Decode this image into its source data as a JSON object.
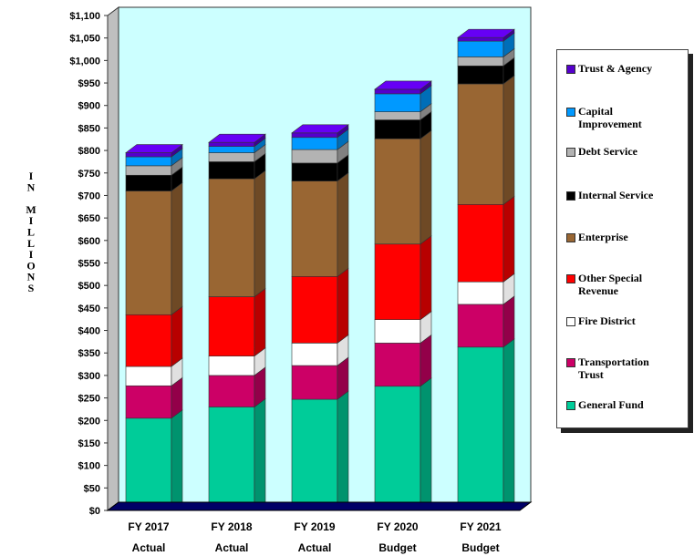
{
  "chart_data": {
    "type": "bar",
    "stacked": true,
    "categories": [
      {
        "line1": "FY 2017",
        "line2": "Actual"
      },
      {
        "line1": "FY 2018",
        "line2": "Actual"
      },
      {
        "line1": "FY 2019",
        "line2": "Actual"
      },
      {
        "line1": "FY 2020",
        "line2": "Budget"
      },
      {
        "line1": "FY 2021",
        "line2": "Budget"
      }
    ],
    "ylabel_letters": [
      "I",
      "N",
      "",
      "M",
      "I",
      "L",
      "L",
      "I",
      "O",
      "N",
      "S"
    ],
    "yticks": [
      "$0",
      "$50",
      "$100",
      "$150",
      "$200",
      "$250",
      "$300",
      "$350",
      "$400",
      "$450",
      "$500",
      "$550",
      "$600",
      "$650",
      "$700",
      "$750",
      "$800",
      "$850",
      "$900",
      "$950",
      "$1,000",
      "$1,050",
      "$1,100"
    ],
    "ylim": [
      0,
      1100
    ],
    "grid": false,
    "legend_position": "right",
    "series": [
      {
        "name": "General Fund",
        "color": "#00cc99",
        "values": [
          205,
          230,
          247,
          276,
          363
        ]
      },
      {
        "name": "Transportation Trust",
        "color": "#cc0066",
        "values": [
          72,
          70,
          75,
          96,
          95
        ]
      },
      {
        "name": "Fire District",
        "color": "#ffffff",
        "values": [
          43,
          43,
          50,
          52,
          50
        ]
      },
      {
        "name": "Other Special Revenue",
        "color": "#ff0000",
        "values": [
          115,
          132,
          148,
          168,
          172
        ]
      },
      {
        "name": "Enterprise",
        "color": "#996633",
        "values": [
          275,
          262,
          212,
          234,
          268
        ]
      },
      {
        "name": "Internal Service",
        "color": "#000000",
        "values": [
          35,
          38,
          40,
          42,
          40
        ]
      },
      {
        "name": "Debt Service",
        "color": "#b3b3b3",
        "values": [
          21,
          20,
          30,
          18,
          20
        ]
      },
      {
        "name": "Capital Improvement",
        "color": "#0099ff",
        "values": [
          20,
          14,
          27,
          40,
          35
        ]
      },
      {
        "name": "Trust & Agency",
        "color": "#5500cc",
        "values": [
          9,
          9,
          10,
          10,
          8
        ]
      }
    ],
    "legend_order": [
      "Trust & Agency",
      "Capital Improvement",
      "Debt Service",
      "Internal Service",
      "Enterprise",
      "Other Special Revenue",
      "Fire District",
      "Transportation Trust",
      "General Fund"
    ],
    "legend_display": [
      {
        "series": "Trust & Agency",
        "lines": [
          "Trust & Agency"
        ]
      },
      {
        "series": "Capital Improvement",
        "lines": [
          "Capital",
          "Improvement"
        ]
      },
      {
        "series": "Debt Service",
        "lines": [
          "Debt Service"
        ]
      },
      {
        "series": "Internal Service",
        "lines": [
          "Internal Service"
        ]
      },
      {
        "series": "Enterprise",
        "lines": [
          "Enterprise"
        ]
      },
      {
        "series": "Other Special Revenue",
        "lines": [
          "Other Special",
          "Revenue"
        ]
      },
      {
        "series": "Fire District",
        "lines": [
          "Fire District"
        ]
      },
      {
        "series": "Transportation Trust",
        "lines": [
          "Transportation",
          "Trust"
        ]
      },
      {
        "series": "General Fund",
        "lines": [
          "General Fund"
        ]
      }
    ],
    "colors": {
      "plot_background": "#ccffff",
      "floor": "#000066",
      "side_wall": "#bfbfbf"
    }
  }
}
